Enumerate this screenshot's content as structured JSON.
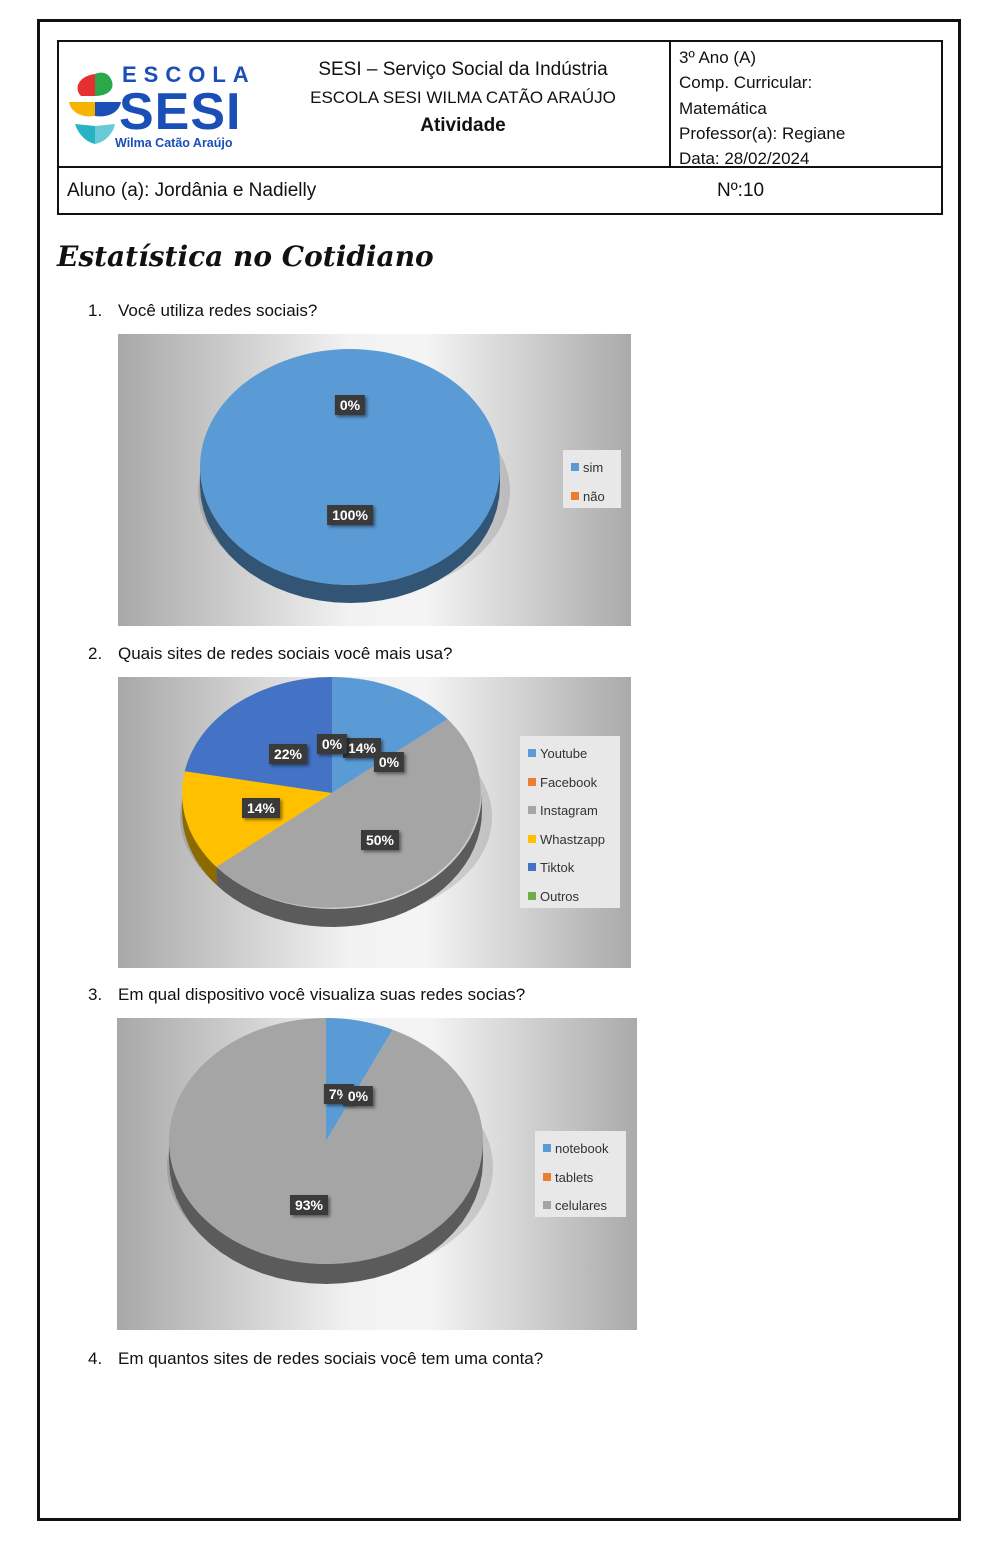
{
  "header": {
    "logo": {
      "escola": "ESCOLA",
      "sesi": "SESI",
      "sub": "Wilma Catão Araújo"
    },
    "line1": "SESI – Serviço Social da Indústria",
    "line2": "ESCOLA SESI WILMA CATÃO ARAÚJO",
    "line3": "Atividade",
    "right": [
      "3º Ano (A)",
      "Comp. Curricular:",
      "Matemática",
      "Professor(a): Regiane",
      "Data: 28/02/2024"
    ],
    "aluno": "Aluno (a): Jordânia e Nadielly",
    "numero": "Nº:10"
  },
  "title": "Estatística no Cotidiano",
  "questions": [
    {
      "num": "1.",
      "text": "Você utiliza redes sociais?"
    },
    {
      "num": "2.",
      "text": "Quais sites de redes sociais você mais usa?"
    },
    {
      "num": "3.",
      "text": "Em qual dispositivo você visualiza suas redes socias?"
    },
    {
      "num": "4.",
      "text": "Em quantos sites de redes sociais você tem uma conta?"
    }
  ],
  "colors": {
    "blue": "#5b9bd5",
    "orange": "#ed7d31",
    "gray": "#a5a5a5",
    "yellow": "#ffc000",
    "darkblue": "#4472c4",
    "green": "#70ad47"
  },
  "chart_data": [
    {
      "type": "pie",
      "categories": [
        "sim",
        "não"
      ],
      "values": [
        100,
        0
      ],
      "data_labels": [
        "100%",
        "0%"
      ],
      "colors": [
        "#5b9bd5",
        "#ed7d31"
      ],
      "legend": "right"
    },
    {
      "type": "pie",
      "categories": [
        "Youtube",
        "Facebook",
        "Instagram",
        "Whastzapp",
        "Tiktok",
        "Outros"
      ],
      "values": [
        14,
        0,
        50,
        14,
        22,
        0
      ],
      "data_labels": [
        "14%",
        "0%",
        "50%",
        "14%",
        "22%",
        "0%"
      ],
      "colors": [
        "#5b9bd5",
        "#ed7d31",
        "#a5a5a5",
        "#ffc000",
        "#4472c4",
        "#70ad47"
      ],
      "legend": "right"
    },
    {
      "type": "pie",
      "categories": [
        "notebook",
        "tablets",
        "celulares"
      ],
      "values": [
        7,
        0,
        93
      ],
      "data_labels": [
        "7%",
        "0%",
        "93%"
      ],
      "colors": [
        "#5b9bd5",
        "#ed7d31",
        "#a5a5a5"
      ],
      "legend": "right"
    }
  ]
}
